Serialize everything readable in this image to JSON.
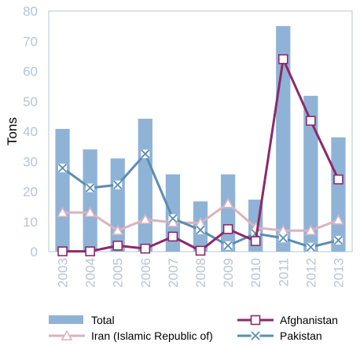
{
  "chart_data": {
    "type": "bar",
    "categories": [
      "2003",
      "2004",
      "2005",
      "2006",
      "2007",
      "2008",
      "2009",
      "2010",
      "2011",
      "2012",
      "2013"
    ],
    "ylabel": "Tons",
    "ylim": [
      0,
      80
    ],
    "yticks": [
      0,
      10,
      20,
      30,
      40,
      50,
      60,
      70,
      80
    ],
    "grid": false,
    "legend_position": "bottom",
    "series": [
      {
        "name": "Total",
        "kind": "bar",
        "color": "#8fb3d6",
        "values": [
          40.8,
          34.0,
          31.0,
          44.2,
          25.7,
          16.7,
          25.7,
          17.3,
          75.0,
          51.8,
          38.0
        ]
      },
      {
        "name": "Afghanistan",
        "kind": "line",
        "marker": "square",
        "color": "#8b2a6b",
        "values": [
          0.1,
          0.1,
          2.0,
          1.0,
          5.0,
          0.3,
          7.5,
          3.5,
          64.0,
          43.5,
          24.0
        ]
      },
      {
        "name": "Iran (Islamic Republic of)",
        "kind": "line",
        "marker": "triangle",
        "color": "#d9b3c1",
        "values": [
          13.0,
          13.0,
          7.0,
          10.7,
          9.7,
          9.5,
          16.0,
          8.0,
          7.0,
          7.0,
          10.5
        ]
      },
      {
        "name": "Pakistan",
        "kind": "line",
        "marker": "x",
        "color": "#5a8db3",
        "values": [
          27.8,
          21.2,
          22.2,
          32.5,
          11.0,
          7.2,
          2.0,
          6.0,
          4.5,
          1.5,
          3.8
        ]
      }
    ]
  }
}
